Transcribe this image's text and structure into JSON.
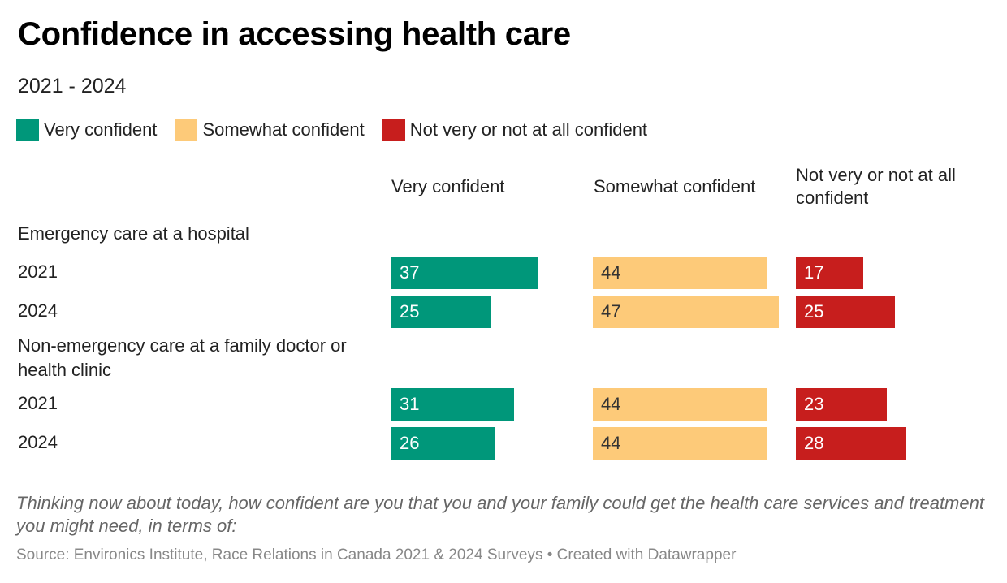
{
  "title": "Confidence in accessing health care",
  "subtitle": "2021 - 2024",
  "note": "Thinking now about today, how confident are you that you and your family could get the health care services and treatment you might need, in terms of:",
  "source": "Source: Environics Institute, Race Relations in Canada 2021 & 2024 Surveys • Created with Datawrapper",
  "colors": {
    "very": "#00977a",
    "somewhat": "#fdca79",
    "not": "#c71e1d"
  },
  "chart_data": {
    "type": "bar",
    "title": "Confidence in accessing health care",
    "subtitle": "2021 - 2024",
    "legend": [
      "Very confident",
      "Somewhat confident",
      "Not very or not at all confident"
    ],
    "columns": [
      "Very confident",
      "Somewhat confident",
      "Not very or not at all confident"
    ],
    "groups": [
      {
        "label": "Emergency care at a hospital",
        "rows": [
          {
            "year": "2021",
            "values": [
              37,
              44,
              17
            ]
          },
          {
            "year": "2024",
            "values": [
              25,
              47,
              25
            ]
          }
        ]
      },
      {
        "label": "Non-emergency care at a family doctor or health clinic",
        "rows": [
          {
            "year": "2021",
            "values": [
              31,
              44,
              23
            ]
          },
          {
            "year": "2024",
            "values": [
              26,
              44,
              28
            ]
          }
        ]
      }
    ]
  }
}
